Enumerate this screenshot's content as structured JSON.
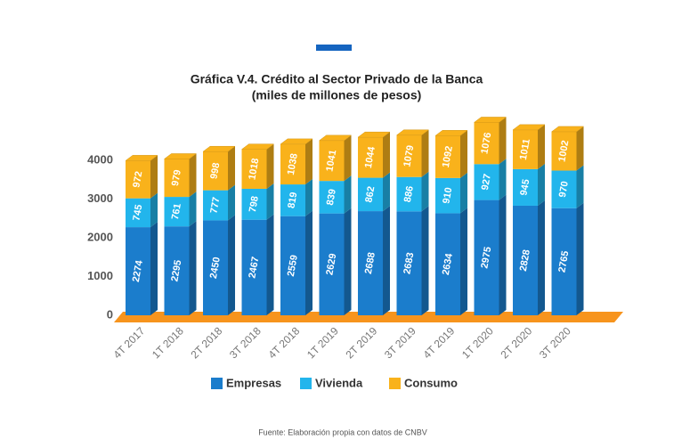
{
  "chart_data": {
    "type": "stacked-bar-3d",
    "title": "Gráfica V.4.  Crédito al Sector Privado de la Banca",
    "subtitle": "(miles de millones de pesos)",
    "source": "Fuente: Elaboración propia con datos de CNBV",
    "categories": [
      "4T 2017",
      "1T 2018",
      "2T 2018",
      "3T 2018",
      "4T 2018",
      "1T 2019",
      "2T 2019",
      "3T 2019",
      "4T 2019",
      "1T 2020",
      "2T 2020",
      "3T 2020"
    ],
    "series": [
      {
        "name": "Empresas",
        "color": "#1b7dcc",
        "values": [
          2274,
          2295,
          2450,
          2467,
          2559,
          2629,
          2688,
          2683,
          2634,
          2975,
          2828,
          2765
        ]
      },
      {
        "name": "Vivienda",
        "color": "#22b5ec",
        "values": [
          745,
          761,
          777,
          798,
          819,
          839,
          862,
          886,
          910,
          927,
          945,
          970
        ]
      },
      {
        "name": "Consumo",
        "color": "#f9b21b",
        "values": [
          972,
          979,
          998,
          1018,
          1038,
          1041,
          1044,
          1079,
          1092,
          1076,
          1011,
          1002
        ]
      }
    ],
    "ylim": [
      0,
      5000
    ],
    "yticks": [
      0,
      1000,
      2000,
      3000,
      4000
    ],
    "grid": false,
    "floor_color": "#f7941d"
  }
}
